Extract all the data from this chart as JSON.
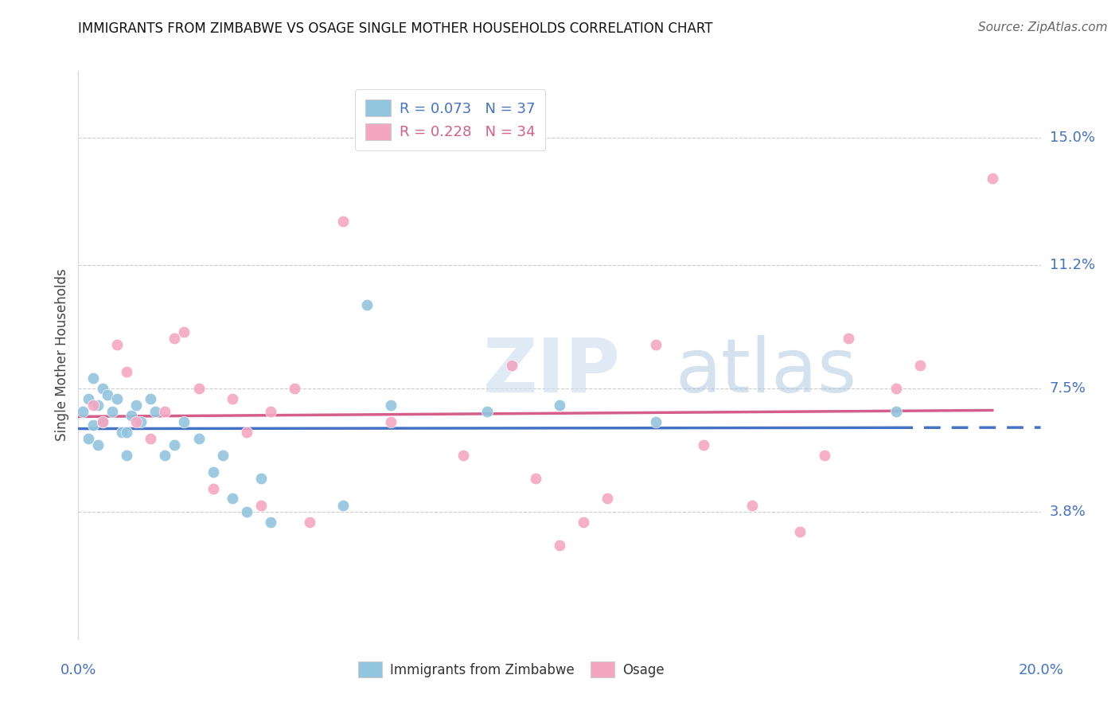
{
  "title": "IMMIGRANTS FROM ZIMBABWE VS OSAGE SINGLE MOTHER HOUSEHOLDS CORRELATION CHART",
  "source": "Source: ZipAtlas.com",
  "ylabel": "Single Mother Households",
  "xlim": [
    0.0,
    0.2
  ],
  "ylim": [
    0.0,
    0.17
  ],
  "ytick_labels": [
    "3.8%",
    "7.5%",
    "11.2%",
    "15.0%"
  ],
  "ytick_values": [
    0.038,
    0.075,
    0.112,
    0.15
  ],
  "legend_r1": "R = 0.073",
  "legend_n1": "N = 37",
  "legend_r2": "R = 0.228",
  "legend_n2": "N = 34",
  "color_blue": "#92c5de",
  "color_pink": "#f4a6c0",
  "color_blue_line": "#4472C4",
  "color_pink_line": "#d45f8a",
  "color_axis_label": "#4472C4",
  "zimbabwe_x": [
    0.001,
    0.002,
    0.002,
    0.003,
    0.003,
    0.004,
    0.004,
    0.005,
    0.005,
    0.006,
    0.007,
    0.008,
    0.009,
    0.01,
    0.01,
    0.011,
    0.012,
    0.013,
    0.015,
    0.016,
    0.018,
    0.02,
    0.022,
    0.025,
    0.028,
    0.03,
    0.032,
    0.035,
    0.038,
    0.04,
    0.055,
    0.06,
    0.065,
    0.085,
    0.1,
    0.12,
    0.17
  ],
  "zimbabwe_y": [
    0.068,
    0.072,
    0.06,
    0.078,
    0.064,
    0.07,
    0.058,
    0.075,
    0.065,
    0.073,
    0.068,
    0.072,
    0.062,
    0.055,
    0.062,
    0.067,
    0.07,
    0.065,
    0.072,
    0.068,
    0.055,
    0.058,
    0.065,
    0.06,
    0.05,
    0.055,
    0.042,
    0.038,
    0.048,
    0.035,
    0.04,
    0.1,
    0.07,
    0.068,
    0.07,
    0.065,
    0.068
  ],
  "osage_x": [
    0.003,
    0.005,
    0.008,
    0.01,
    0.012,
    0.015,
    0.018,
    0.02,
    0.022,
    0.025,
    0.028,
    0.032,
    0.035,
    0.038,
    0.04,
    0.045,
    0.048,
    0.055,
    0.065,
    0.08,
    0.09,
    0.095,
    0.1,
    0.105,
    0.11,
    0.12,
    0.13,
    0.14,
    0.15,
    0.155,
    0.16,
    0.17,
    0.175,
    0.19
  ],
  "osage_y": [
    0.07,
    0.065,
    0.088,
    0.08,
    0.065,
    0.06,
    0.068,
    0.09,
    0.092,
    0.075,
    0.045,
    0.072,
    0.062,
    0.04,
    0.068,
    0.075,
    0.035,
    0.125,
    0.065,
    0.055,
    0.082,
    0.048,
    0.028,
    0.035,
    0.042,
    0.088,
    0.058,
    0.04,
    0.032,
    0.055,
    0.09,
    0.075,
    0.082,
    0.138
  ]
}
